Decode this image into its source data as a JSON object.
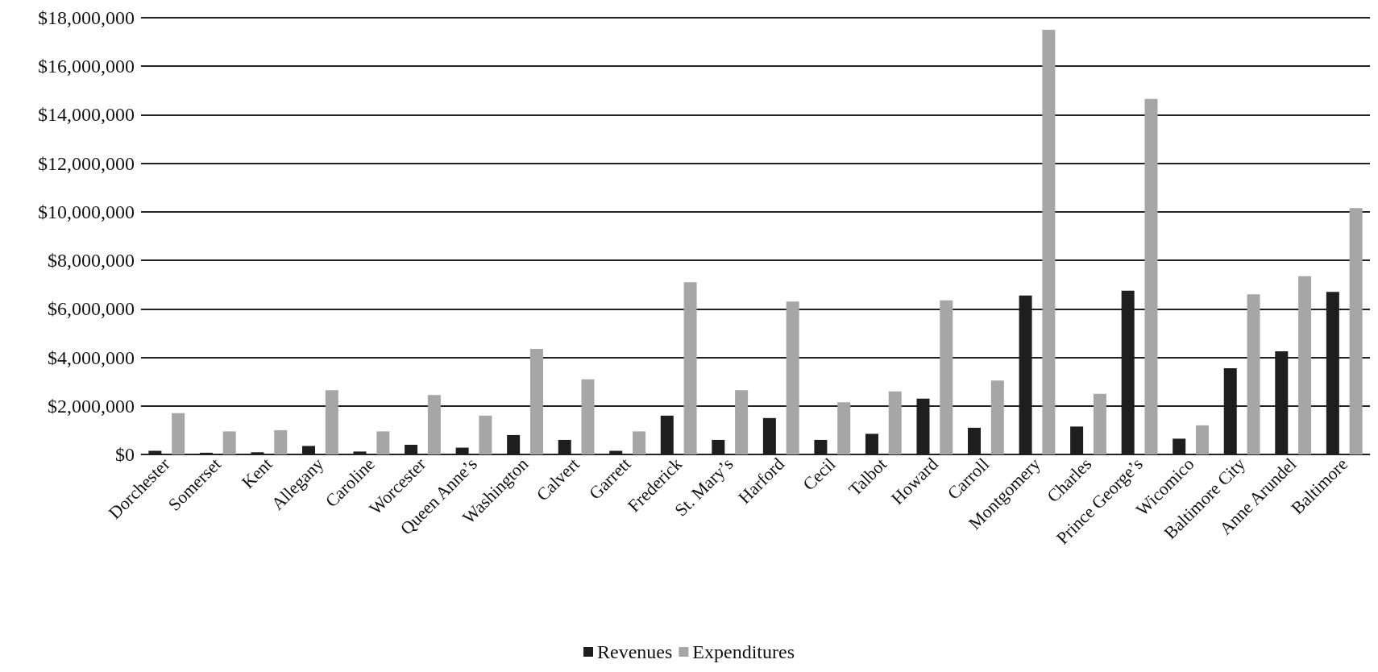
{
  "chart_data": {
    "type": "bar",
    "categories": [
      "Dorchester",
      "Somerset",
      "Kent",
      "Allegany",
      "Caroline",
      "Worcester",
      "Queen Anne’s",
      "Washington",
      "Calvert",
      "Garrett",
      "Frederick",
      "St. Mary’s",
      "Harford",
      "Cecil",
      "Talbot",
      "Howard",
      "Carroll",
      "Montgomery",
      "Charles",
      "Prince George’s",
      "Wicomico",
      "Baltimore City",
      "Anne Arundel",
      "Baltimore"
    ],
    "series": [
      {
        "name": "Revenues",
        "color": "#1e1e1e",
        "values": [
          150000,
          70000,
          90000,
          350000,
          120000,
          400000,
          280000,
          800000,
          600000,
          150000,
          1600000,
          600000,
          1500000,
          600000,
          850000,
          2300000,
          1100000,
          6550000,
          1150000,
          6750000,
          650000,
          3550000,
          4250000,
          6700000
        ]
      },
      {
        "name": "Expenditures",
        "color": "#a6a6a6",
        "values": [
          1700000,
          950000,
          1000000,
          2650000,
          950000,
          2450000,
          1600000,
          4350000,
          3100000,
          950000,
          7100000,
          2650000,
          6300000,
          2150000,
          2600000,
          6350000,
          3050000,
          17500000,
          2500000,
          14650000,
          1200000,
          6600000,
          7350000,
          10150000
        ]
      }
    ],
    "ylim": [
      0,
      18000000
    ],
    "yticks": [
      {
        "value": 0,
        "label": "$0"
      },
      {
        "value": 2000000,
        "label": "$2,000,000"
      },
      {
        "value": 4000000,
        "label": "$4,000,000"
      },
      {
        "value": 6000000,
        "label": "$6,000,000"
      },
      {
        "value": 8000000,
        "label": "$8,000,000"
      },
      {
        "value": 10000000,
        "label": "$10,000,000"
      },
      {
        "value": 12000000,
        "label": "$12,000,000"
      },
      {
        "value": 14000000,
        "label": "$14,000,000"
      },
      {
        "value": 16000000,
        "label": "$16,000,000"
      },
      {
        "value": 18000000,
        "label": "$18,000,000"
      }
    ],
    "grid": "y",
    "legend": "bottom"
  }
}
